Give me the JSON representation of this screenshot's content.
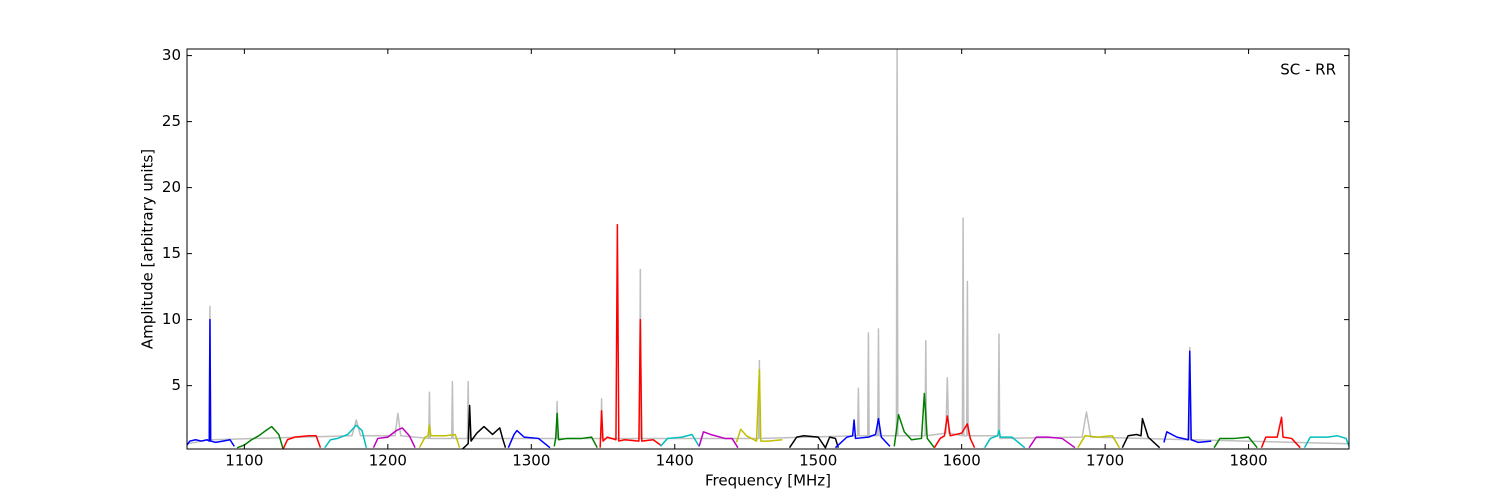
{
  "chart_data": {
    "type": "line",
    "annotation": "SC - RR",
    "xlabel": "Frequency [MHz]",
    "ylabel": "Amplitude [arbitrary units]",
    "xlim": [
      1060,
      1870
    ],
    "xticks": [
      1100,
      1200,
      1300,
      1400,
      1500,
      1600,
      1700,
      1800
    ],
    "ylim": [
      0.2,
      30.5
    ],
    "yticks": [
      5,
      10,
      15,
      20,
      25,
      30
    ],
    "grid": false,
    "series": [
      {
        "color": "#bfbfbf",
        "x": [
          1060,
          1075.5,
          1076,
          1076.5,
          1175,
          1178,
          1181,
          1205,
          1207,
          1209,
          1228.5,
          1229,
          1229.5,
          1244.5,
          1245,
          1245.5,
          1255.5,
          1256,
          1256.5,
          1317.5,
          1318,
          1318.5,
          1348.5,
          1349,
          1349.5,
          1375.5,
          1376,
          1376.5,
          1458.5,
          1459,
          1459.5,
          1527.5,
          1528,
          1528.5,
          1534.5,
          1535,
          1535.5,
          1541.5,
          1542,
          1542.5,
          1554.5,
          1555,
          1555.5,
          1574.5,
          1575,
          1575.5,
          1589,
          1590,
          1591,
          1600.5,
          1601,
          1601.5,
          1603.5,
          1604,
          1604.5,
          1625.5,
          1626,
          1626.5,
          1684,
          1687,
          1690,
          1758.5,
          1759,
          1759.5,
          1870
        ],
        "values": [
          0.6,
          0.9,
          11,
          0.9,
          1.2,
          2.4,
          1.2,
          1.2,
          2.9,
          1.2,
          1.0,
          4.5,
          1.0,
          1.0,
          5.3,
          1.0,
          1.0,
          5.3,
          1.0,
          1.0,
          3.8,
          1.0,
          1.0,
          4.0,
          1.0,
          1.0,
          13.8,
          1.0,
          1.0,
          6.9,
          1.0,
          1.2,
          4.8,
          1.2,
          1.2,
          9.0,
          1.2,
          1.2,
          9.3,
          1.2,
          1.2,
          30.5,
          1.2,
          1.2,
          8.4,
          1.2,
          1.4,
          5.6,
          1.4,
          1.2,
          17.7,
          1.2,
          1.2,
          12.9,
          1.2,
          1.2,
          8.9,
          1.0,
          1.1,
          3.0,
          1.1,
          0.9,
          7.9,
          0.9,
          0.6
        ]
      },
      {
        "color": "#0000ff",
        "x": [
          1060,
          1062,
          1066,
          1070,
          1074,
          1075.5,
          1076,
          1076.5,
          1080,
          1085,
          1090,
          1093
        ],
        "values": [
          0.5,
          0.8,
          0.9,
          0.8,
          0.9,
          0.8,
          10,
          0.8,
          0.7,
          0.8,
          0.9,
          0.4
        ]
      },
      {
        "color": "#008000",
        "x": [
          1095,
          1100,
          1105,
          1110,
          1115,
          1119,
          1124,
          1127
        ],
        "values": [
          0.3,
          0.5,
          0.9,
          1.2,
          1.6,
          1.9,
          1.3,
          0.2
        ]
      },
      {
        "color": "#ff0000",
        "x": [
          1127,
          1130,
          1135,
          1145,
          1150,
          1153
        ],
        "values": [
          0.2,
          0.9,
          1.1,
          1.2,
          1.2,
          0.3
        ]
      },
      {
        "color": "#00bfbf",
        "x": [
          1156,
          1160,
          1165,
          1172,
          1178,
          1182,
          1185
        ],
        "values": [
          0.3,
          0.9,
          1.0,
          1.3,
          2.0,
          1.6,
          0.3
        ]
      },
      {
        "color": "#bf00bf",
        "x": [
          1190,
          1193,
          1200,
          1206,
          1210,
          1215,
          1219
        ],
        "values": [
          0.3,
          1.0,
          1.1,
          1.6,
          1.8,
          1.2,
          0.3
        ]
      },
      {
        "color": "#bfbf00",
        "x": [
          1222,
          1226,
          1228,
          1229,
          1230,
          1240,
          1247,
          1250
        ],
        "values": [
          0.3,
          1.1,
          1.2,
          2.0,
          1.2,
          1.2,
          1.3,
          0.3
        ]
      },
      {
        "color": "#000000",
        "x": [
          1252,
          1256,
          1257,
          1258,
          1262,
          1267,
          1273,
          1278,
          1280,
          1282
        ],
        "values": [
          0.2,
          0.6,
          3.5,
          0.8,
          1.4,
          1.9,
          1.3,
          1.8,
          1.0,
          0.3
        ]
      },
      {
        "color": "#0000ff",
        "x": [
          1284,
          1288,
          1290,
          1295,
          1305,
          1313
        ],
        "values": [
          0.3,
          1.3,
          1.6,
          1.1,
          1.0,
          0.3
        ]
      },
      {
        "color": "#008000",
        "x": [
          1316,
          1317,
          1318,
          1319,
          1325,
          1335,
          1342,
          1346
        ],
        "values": [
          0.4,
          1.0,
          2.9,
          0.9,
          1.0,
          1.0,
          1.1,
          0.3
        ]
      },
      {
        "color": "#ff0000",
        "x": [
          1348,
          1349,
          1350,
          1353,
          1359,
          1360,
          1361,
          1365,
          1375,
          1376,
          1377,
          1385,
          1390
        ],
        "values": [
          0.3,
          3.1,
          0.8,
          1.1,
          0.9,
          17.2,
          0.8,
          0.9,
          0.8,
          10,
          0.8,
          0.9,
          0.5
        ]
      },
      {
        "color": "#00bfbf",
        "x": [
          1390,
          1395,
          1405,
          1412,
          1417
        ],
        "values": [
          0.4,
          1.0,
          1.1,
          1.3,
          0.4
        ]
      },
      {
        "color": "#bf00bf",
        "x": [
          1417,
          1420,
          1425,
          1435,
          1440,
          1444
        ],
        "values": [
          0.4,
          1.5,
          1.3,
          1.0,
          1.0,
          0.3
        ]
      },
      {
        "color": "#bfbf00",
        "x": [
          1443,
          1446,
          1450,
          1457,
          1459,
          1460,
          1465,
          1475
        ],
        "values": [
          0.7,
          1.7,
          1.2,
          0.8,
          6.2,
          0.8,
          0.8,
          0.9
        ]
      },
      {
        "color": "#000000",
        "x": [
          1480,
          1485,
          1490,
          1500,
          1505,
          1508,
          1512,
          1514
        ],
        "values": [
          0.3,
          1.1,
          1.2,
          1.1,
          0.3,
          1.1,
          1.0,
          0.3
        ]
      },
      {
        "color": "#0000ff",
        "x": [
          1512,
          1520,
          1524,
          1525,
          1526,
          1535,
          1540,
          1542,
          1544,
          1550
        ],
        "values": [
          0.3,
          1.1,
          1.2,
          2.4,
          1.0,
          1.1,
          1.3,
          2.5,
          1.1,
          0.4
        ]
      },
      {
        "color": "#008000",
        "x": [
          1553,
          1556,
          1560,
          1565,
          1572,
          1574,
          1576,
          1581
        ],
        "values": [
          0.4,
          2.8,
          1.5,
          0.9,
          1.0,
          4.4,
          1.0,
          0.3
        ]
      },
      {
        "color": "#ff0000",
        "x": [
          1581,
          1585,
          1588,
          1590,
          1592,
          1600,
          1604,
          1606,
          1609
        ],
        "values": [
          0.3,
          1.0,
          1.2,
          2.7,
          1.2,
          1.4,
          2.1,
          1.0,
          0.3
        ]
      },
      {
        "color": "#00bfbf",
        "x": [
          1616,
          1620,
          1625,
          1626,
          1627,
          1635,
          1644
        ],
        "values": [
          0.3,
          1.0,
          1.2,
          1.6,
          1.1,
          1.1,
          0.3
        ]
      },
      {
        "color": "#bf00bf",
        "x": [
          1647,
          1652,
          1660,
          1670,
          1679
        ],
        "values": [
          0.3,
          1.1,
          1.1,
          1.0,
          0.3
        ]
      },
      {
        "color": "#bfbf00",
        "x": [
          1681,
          1686,
          1695,
          1705,
          1710
        ],
        "values": [
          0.3,
          1.2,
          1.1,
          1.2,
          0.3
        ]
      },
      {
        "color": "#000000",
        "x": [
          1712,
          1716,
          1722,
          1725,
          1726,
          1730,
          1738
        ],
        "values": [
          0.3,
          1.2,
          1.3,
          1.2,
          2.5,
          1.1,
          0.3
        ]
      },
      {
        "color": "#0000ff",
        "x": [
          1741,
          1743,
          1750,
          1758,
          1759,
          1760,
          1765,
          1774
        ],
        "values": [
          0.7,
          1.5,
          1.1,
          0.9,
          7.6,
          0.9,
          0.7,
          0.8
        ]
      },
      {
        "color": "#008000",
        "x": [
          1776,
          1780,
          1790,
          1800,
          1806
        ],
        "values": [
          0.3,
          1.0,
          1.0,
          1.1,
          0.3
        ]
      },
      {
        "color": "#ff0000",
        "x": [
          1809,
          1812,
          1820,
          1823,
          1824,
          1830,
          1836
        ],
        "values": [
          0.3,
          1.1,
          1.1,
          2.6,
          1.1,
          1.0,
          0.3
        ]
      },
      {
        "color": "#00bfbf",
        "x": [
          1839,
          1843,
          1855,
          1862,
          1868,
          1870
        ],
        "values": [
          0.3,
          1.1,
          1.1,
          1.2,
          1.0,
          0.4
        ]
      }
    ]
  }
}
